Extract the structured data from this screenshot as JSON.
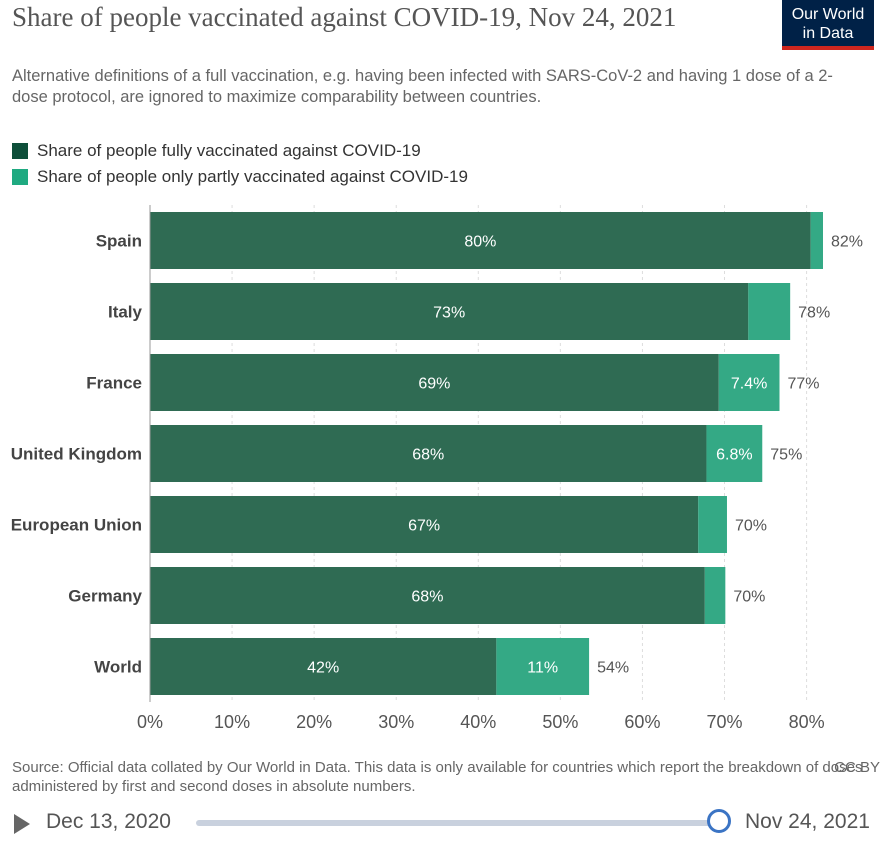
{
  "header": {
    "title": "Share of people vaccinated against COVID-19, Nov 24, 2021",
    "subtitle": "Alternative definitions of a full vaccination, e.g. having been infected with SARS-CoV-2 and having 1 dose of a 2-dose protocol, are ignored to maximize comparability between countries.",
    "logo_line1": "Our World",
    "logo_line2": "in Data"
  },
  "colors": {
    "fully": "#2f6b53",
    "partly": "#34a985",
    "legend_fully": "#0e4f3a",
    "legend_partly": "#1faa81",
    "total_label": "#555555",
    "axis_label": "#555555"
  },
  "chart_data": {
    "type": "bar",
    "orientation": "horizontal",
    "stacked": true,
    "categories": [
      "Spain",
      "Italy",
      "France",
      "United Kingdom",
      "European Union",
      "Germany",
      "World"
    ],
    "series": [
      {
        "name": "Share of people fully vaccinated against COVID-19",
        "values": [
          80.5,
          72.9,
          69.3,
          67.8,
          66.8,
          67.6,
          42.2
        ],
        "labels": [
          "80%",
          "73%",
          "69%",
          "68%",
          "67%",
          "68%",
          "42%"
        ]
      },
      {
        "name": "Share of people only partly vaccinated against COVID-19",
        "values": [
          1.5,
          5.1,
          7.4,
          6.8,
          3.5,
          2.5,
          11.3
        ],
        "labels": [
          "",
          "",
          "7.4%",
          "6.8%",
          "",
          "",
          "11%"
        ]
      }
    ],
    "totals": [
      "82%",
      "78%",
      "77%",
      "75%",
      "70%",
      "70%",
      "54%"
    ],
    "xlim": [
      0,
      82
    ],
    "xticks": [
      0,
      10,
      20,
      30,
      40,
      50,
      60,
      70,
      80
    ],
    "xtick_labels": [
      "0%",
      "10%",
      "20%",
      "30%",
      "40%",
      "50%",
      "60%",
      "70%",
      "80%"
    ],
    "grid": true,
    "legend_position": "top-left"
  },
  "footer": {
    "source": "Source: Official data collated by Our World in Data. This data is only available for countries which report the breakdown of doses administered by first and second doses in absolute numbers.",
    "license": "CC BY"
  },
  "timeline": {
    "start_label": "Dec 13, 2020",
    "end_label": "Nov 24, 2021"
  }
}
